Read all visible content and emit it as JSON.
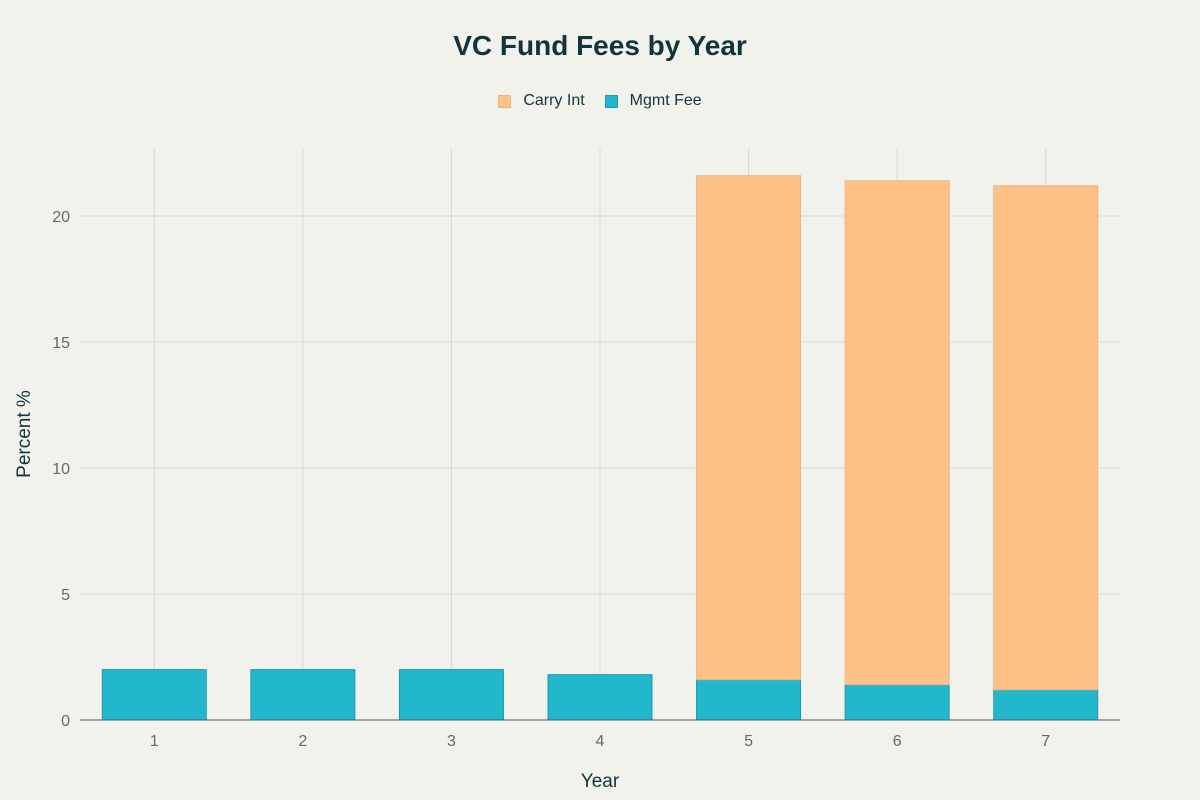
{
  "chart_data": {
    "type": "bar",
    "stacked": true,
    "title": "VC Fund Fees by Year",
    "xlabel": "Year",
    "ylabel": "Percent %",
    "categories": [
      "1",
      "2",
      "3",
      "4",
      "5",
      "6",
      "7"
    ],
    "series": [
      {
        "name": "Mgmt Fee",
        "color": "#21b8cd",
        "values": [
          2.0,
          2.0,
          2.0,
          1.8,
          1.6,
          1.4,
          1.2
        ]
      },
      {
        "name": "Carry Int",
        "color": "#ffc185",
        "values": [
          0,
          0,
          0,
          0,
          20.0,
          20.0,
          20.0
        ]
      }
    ],
    "legend_order": [
      "Carry Int",
      "Mgmt Fee"
    ],
    "ylim": [
      0,
      22.7
    ],
    "yticks": [
      0,
      5,
      10,
      15,
      20
    ],
    "grid": true,
    "legend_position": "top-center"
  }
}
